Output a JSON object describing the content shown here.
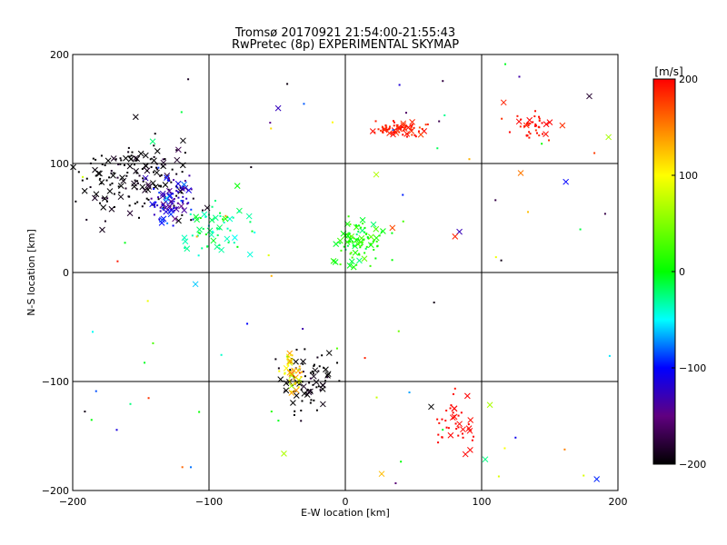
{
  "chart_data": {
    "type": "scatter",
    "title": "Tromsø 20170921 21:54:00-21:55:43",
    "subtitle": "RwPretec (8p) EXPERIMENTAL SKYMAP",
    "xlabel": "E-W location [km]",
    "ylabel": "N-S location [km]",
    "xlim": [
      -200,
      200
    ],
    "ylim": [
      -200,
      200
    ],
    "xticks": [
      -200,
      -100,
      0,
      100,
      200
    ],
    "yticks": [
      -200,
      -100,
      0,
      100,
      200
    ],
    "grid": true,
    "colorbar": {
      "label": "[m/s]",
      "range": [
        -200,
        200
      ],
      "ticks": [
        200,
        100,
        0,
        -100,
        -200
      ],
      "colormap": "rainbow (black → purple → blue → cyan → green → yellow → orange → red)"
    },
    "marker_types": [
      "dot",
      "x"
    ],
    "clusters": [
      {
        "region": "north-west",
        "x_center": -155,
        "y_center": 85,
        "x_spread": 30,
        "y_spread": 25,
        "velocity": -200,
        "velocity_spread": 15,
        "count": 170
      },
      {
        "region": "north-west inner",
        "x_center": -128,
        "y_center": 65,
        "x_spread": 12,
        "y_spread": 18,
        "velocity": -120,
        "velocity_spread": 30,
        "count": 90
      },
      {
        "region": "north-west ring",
        "x_center": -95,
        "y_center": 40,
        "x_spread": 18,
        "y_spread": 15,
        "velocity": -25,
        "velocity_spread": 20,
        "count": 60
      },
      {
        "region": "north-central",
        "x_center": 40,
        "y_center": 132,
        "x_spread": 14,
        "y_spread": 6,
        "velocity": 190,
        "velocity_spread": 15,
        "count": 70
      },
      {
        "region": "north-east",
        "x_center": 140,
        "y_center": 135,
        "x_spread": 14,
        "y_spread": 10,
        "velocity": 195,
        "velocity_spread": 10,
        "count": 40
      },
      {
        "region": "center",
        "x_center": 10,
        "y_center": 28,
        "x_spread": 12,
        "y_spread": 14,
        "velocity": 10,
        "velocity_spread": 25,
        "count": 90
      },
      {
        "region": "south-central",
        "x_center": -30,
        "y_center": -100,
        "x_spread": 14,
        "y_spread": 22,
        "velocity": -200,
        "velocity_spread": 15,
        "count": 80
      },
      {
        "region": "south-central colored",
        "x_center": -38,
        "y_center": -95,
        "x_spread": 6,
        "y_spread": 14,
        "velocity": 110,
        "velocity_spread": 40,
        "count": 40
      },
      {
        "region": "south-east",
        "x_center": 80,
        "y_center": -135,
        "x_spread": 10,
        "y_spread": 20,
        "velocity": 200,
        "velocity_spread": 5,
        "count": 40
      }
    ]
  }
}
